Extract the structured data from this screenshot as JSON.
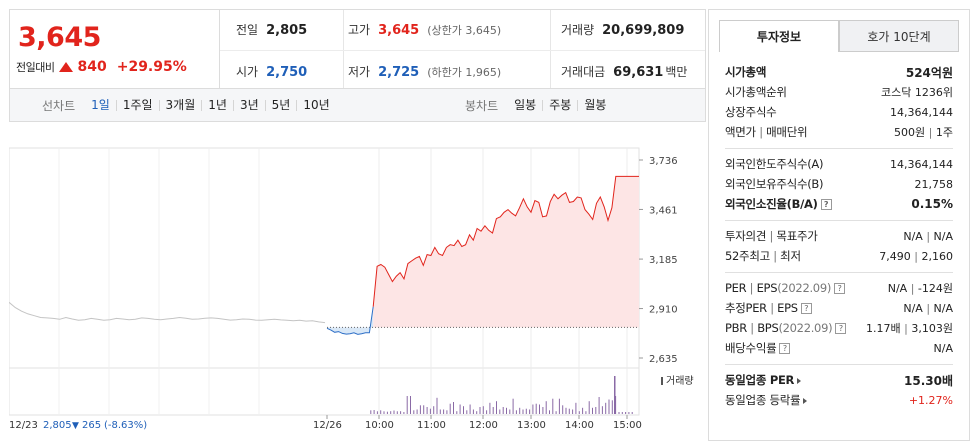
{
  "price": {
    "current": "3,645",
    "change_label": "전일대비",
    "change": "840",
    "change_pct": "+29.95%"
  },
  "stats": {
    "prev_close_label": "전일",
    "prev_close": "2,805",
    "high_label": "고가",
    "high": "3,645",
    "high_note": "(상한가 3,645)",
    "volume_label": "거래량",
    "volume": "20,699,809",
    "open_label": "시가",
    "open": "2,750",
    "low_label": "저가",
    "low": "2,725",
    "low_note": "(하한가 1,965)",
    "turnover_label": "거래대금",
    "turnover": "69,631",
    "turnover_unit": "백만"
  },
  "toolbar": {
    "line_label": "선차트",
    "line_periods": [
      "1일",
      "1주일",
      "3개월",
      "1년",
      "3년",
      "5년",
      "10년"
    ],
    "active_period": "1일",
    "candle_label": "봉차트",
    "candle_periods": [
      "일봉",
      "주봉",
      "월봉"
    ]
  },
  "chart_data": {
    "type": "line",
    "title": "",
    "y_ticks": [
      "3,736",
      "3,461",
      "3,185",
      "2,910",
      "2,635"
    ],
    "ylim": [
      2635,
      3736
    ],
    "prev_close": 2805,
    "x_ticks": [
      "12/26",
      "10:00",
      "11:00",
      "12:00",
      "13:00",
      "14:00",
      "15:00"
    ],
    "prev_day_label": "12/23",
    "prev_day_close": "2,805",
    "prev_day_change": "265",
    "prev_day_pct": "(-8.63%)",
    "volume_label": "거래량",
    "prev_day_series": [
      2945,
      2915,
      2895,
      2880,
      2870,
      2860,
      2858,
      2855,
      2850,
      2860,
      2852,
      2845,
      2848,
      2855,
      2850,
      2845,
      2848,
      2855,
      2852,
      2848,
      2850,
      2858,
      2855,
      2850,
      2848,
      2852,
      2855,
      2860,
      2856,
      2850,
      2852,
      2856,
      2858,
      2855,
      2850,
      2846,
      2848,
      2852,
      2850,
      2846,
      2845,
      2848,
      2850,
      2847,
      2845,
      2842,
      2845,
      2840,
      2842,
      2836,
      2832
    ],
    "today_series": [
      2800,
      2790,
      2778,
      2782,
      2772,
      2768,
      2770,
      2775,
      2766,
      2770,
      2775,
      2775,
      2920,
      3145,
      3155,
      3140,
      3100,
      3060,
      3090,
      3110,
      3075,
      3160,
      3175,
      3190,
      3200,
      3150,
      3210,
      3205,
      3250,
      3215,
      3205,
      3250,
      3265,
      3260,
      3290,
      3255,
      3265,
      3320,
      3290,
      3355,
      3340,
      3370,
      3345,
      3330,
      3410,
      3420,
      3445,
      3460,
      3440,
      3425,
      3470,
      3520,
      3475,
      3445,
      3510,
      3500,
      3420,
      3425,
      3505,
      3545,
      3520,
      3540,
      3555,
      3500,
      3505,
      3530,
      3525,
      3460,
      3435,
      3405,
      3495,
      3530,
      3475,
      3400,
      3470,
      3645,
      3645,
      3645,
      3645,
      3645,
      3645
    ]
  },
  "side": {
    "tab_invest": "투자정보",
    "tab_orderbook": "호가 10단계",
    "market_cap_label": "시가총액",
    "market_cap": "524억원",
    "cap_rank_label": "시가총액순위",
    "cap_rank": "코스닥 1236위",
    "shares_label": "상장주식수",
    "shares": "14,364,144",
    "par_label": "액면가",
    "unit_label": "매매단위",
    "par": "500원",
    "unit": "1주",
    "foreign_limit_label": "외국인한도주식수(A)",
    "foreign_limit": "14,364,144",
    "foreign_hold_label": "외국인보유주식수(B)",
    "foreign_hold": "21,758",
    "foreign_ratio_label": "외국인소진율(B/A)",
    "foreign_ratio": "0.15%",
    "opinion_label": "투자의견",
    "target_label": "목표주가",
    "opinion": "N/A",
    "target": "N/A",
    "w52_high_label": "52주최고",
    "w52_low_label": "최저",
    "w52_high": "7,490",
    "w52_low": "2,160",
    "per_label": "PER",
    "eps_label": "EPS",
    "eps_period": "(2022.09)",
    "per": "N/A",
    "eps": "-124원",
    "est_per_label": "추정PER",
    "est_eps_label": "EPS",
    "est_per": "N/A",
    "est_eps": "N/A",
    "pbr_label": "PBR",
    "bps_label": "BPS",
    "bps_period": "(2022.09)",
    "pbr": "1.17배",
    "bps": "3,103원",
    "div_label": "배당수익률",
    "div": "N/A",
    "sector_per_label": "동일업종 PER",
    "sector_per": "15.30배",
    "sector_rate_label": "동일업종 등락률",
    "sector_rate": "+1.27%"
  }
}
